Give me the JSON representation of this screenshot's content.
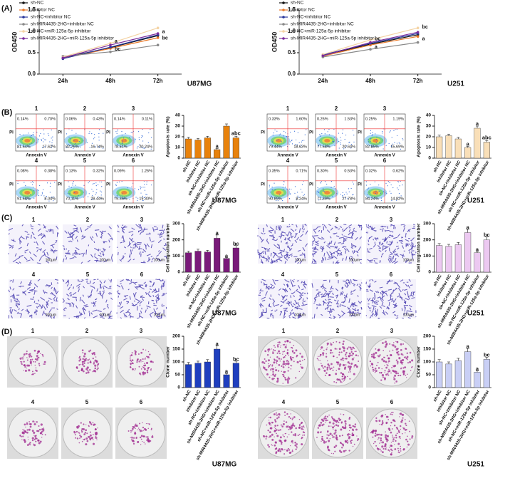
{
  "panels": [
    "(A)",
    "(B)",
    "(C)",
    "(D)"
  ],
  "flow": {
    "x_label": "Annexin V",
    "y_label": "PI",
    "groups": [
      {
        "plots": [
          {
            "label": "1",
            "quadrants": [
              "0.14%",
              "0.70%",
              "81.54%",
              "17.62%"
            ]
          },
          {
            "label": "2",
            "quadrants": [
              "0.06%",
              "0.43%",
              "82.76%",
              "16.74%"
            ]
          },
          {
            "label": "3",
            "quadrants": [
              "0.14%",
              "0.11%",
              "78.51%",
              "20.24%"
            ]
          },
          {
            "label": "4",
            "quadrants": [
              "0.08%",
              "0.38%",
              "91.58%",
              "8.04%"
            ]
          },
          {
            "label": "5",
            "quadrants": [
              "0.13%",
              "0.32%",
              "70.11%",
              "29.44%"
            ]
          },
          {
            "label": "6",
            "quadrants": [
              "0.09%",
              "1.26%",
              "79.36%",
              "19.30%"
            ]
          }
        ]
      },
      {
        "plots": [
          {
            "label": "1",
            "quadrants": [
              "0.33%",
              "1.60%",
              "79.44%",
              "18.63%"
            ]
          },
          {
            "label": "2",
            "quadrants": [
              "0.26%",
              "1.53%",
              "77.58%",
              "20.64%"
            ]
          },
          {
            "label": "3",
            "quadrants": [
              "0.25%",
              "1.19%",
              "82.85%",
              "15.69%"
            ]
          },
          {
            "label": "4",
            "quadrants": [
              "0.35%",
              "0.71%",
              "90.89%",
              "8.24%"
            ]
          },
          {
            "label": "5",
            "quadrants": [
              "0.30%",
              "0.53%",
              "71.39%",
              "27.78%"
            ]
          },
          {
            "label": "6",
            "quadrants": [
              "0.32%",
              "0.62%",
              "84.24%",
              "14.82%"
            ]
          }
        ]
      }
    ]
  },
  "migration_images": {
    "scale_bar": "100μm",
    "labels": [
      "1",
      "2",
      "3",
      "4",
      "5",
      "6"
    ]
  },
  "colony_images": {
    "labels": [
      "1",
      "2",
      "3",
      "4",
      "5",
      "6"
    ]
  },
  "chart_data": [
    {
      "type": "line",
      "title": "U87MG",
      "y_label": "OD450",
      "categories": [
        "24h",
        "48h",
        "72h"
      ],
      "ylim": [
        0,
        1.5
      ],
      "yticks": [
        {
          "value": 0,
          "label": "0.0"
        },
        0.5,
        {
          "value": 1,
          "label": "1.0"
        },
        1.5
      ],
      "series": [
        {
          "name": "sh-NC",
          "color": "#111111",
          "values": [
            0.38,
            0.62,
            0.9
          ]
        },
        {
          "name": "inhibitor NC",
          "color": "#e8792a",
          "values": [
            0.37,
            0.6,
            0.85
          ]
        },
        {
          "name": "sh-NC+inhibitor NC",
          "color": "#2b3a9e",
          "values": [
            0.36,
            0.63,
            0.92
          ]
        },
        {
          "name": "sh-MIR4435-2HG+inhibitor NC",
          "color": "#888888",
          "values": [
            0.42,
            0.52,
            0.68
          ]
        },
        {
          "name": "sh-NC+miR-125a-5p inhibitor",
          "color": "#f4d3a4",
          "values": [
            0.4,
            0.72,
            1.08
          ]
        },
        {
          "name": "sh-MIR4435-2HG+miR-125a-5p inhibitor",
          "color": "#7b2d9c",
          "values": [
            0.38,
            0.68,
            0.95
          ]
        }
      ],
      "annotations": [
        {
          "text": "a",
          "index": 1,
          "y": 0.76,
          "color": "#2b3a9e"
        },
        {
          "text": "bc",
          "index": 1,
          "y": 0.58,
          "color": "#e8792a"
        },
        {
          "text": "a",
          "index": 2,
          "y": 0.99,
          "color": "#2b3a9e"
        },
        {
          "text": "bc",
          "index": 2,
          "y": 0.84,
          "color": "#e8792a"
        }
      ]
    },
    {
      "type": "line",
      "title": "U251",
      "y_label": "OD450",
      "categories": [
        "24h",
        "48h",
        "72h"
      ],
      "ylim": [
        0,
        1.5
      ],
      "yticks": [
        {
          "value": 0,
          "label": "0.0"
        },
        0.5,
        {
          "value": 1,
          "label": "1.0"
        },
        1.5
      ],
      "series": [
        {
          "name": "sh-NC",
          "color": "#111111",
          "values": [
            0.44,
            0.7,
            0.92
          ]
        },
        {
          "name": "inhibitor NC",
          "color": "#e8792a",
          "values": [
            0.42,
            0.68,
            0.88
          ]
        },
        {
          "name": "sh-NC+inhibitor NC",
          "color": "#2b3a9e",
          "values": [
            0.45,
            0.72,
            0.95
          ]
        },
        {
          "name": "sh-MIR4435-2HG+inhibitor NC",
          "color": "#888888",
          "values": [
            0.4,
            0.58,
            0.74
          ]
        },
        {
          "name": "sh-NC+miR-125a-5p inhibitor",
          "color": "#f4d3a4",
          "values": [
            0.46,
            0.8,
            1.08
          ]
        },
        {
          "name": "sh-MIR4435-2HG+miR-125a-5p inhibitor",
          "color": "#7b2d9c",
          "values": [
            0.43,
            0.74,
            0.98
          ]
        }
      ],
      "annotations": [
        {
          "text": "bc",
          "index": 1,
          "y": 0.82,
          "color": "#e8792a"
        },
        {
          "text": "a",
          "index": 1,
          "y": 0.63,
          "color": "#2b3a9e"
        },
        {
          "text": "bc",
          "index": 2,
          "y": 1.1,
          "color": "#e8792a"
        },
        {
          "text": "a",
          "index": 2,
          "y": 0.82,
          "color": "#2b3a9e"
        }
      ]
    },
    {
      "type": "bar",
      "title": "U87MG",
      "y_label": "Apoptosis rate (%)",
      "color": "#e8820c",
      "categories": [
        "sh-NC",
        "inhibitor NC",
        "sh-NC+inhibitor NC",
        "sh-MIR4435-2HG+inhibitor NC",
        "sh-NC+miR-125a-5p inhibitor",
        "sh-MIR4435-2HG+miR-125a-5p inhibitor"
      ],
      "values": [
        18,
        17,
        19,
        8,
        30,
        19
      ],
      "errors": [
        1.5,
        1.5,
        1.5,
        1,
        2,
        1.5
      ],
      "ylim": [
        0,
        40
      ],
      "yticks": [
        0,
        10,
        20,
        30,
        40
      ],
      "annotations": [
        {
          "text": "a",
          "index": 3,
          "y": 11
        },
        {
          "text": "abc",
          "index": 5,
          "y": 23
        }
      ]
    },
    {
      "type": "bar",
      "title": "U251",
      "y_label": "Apoptosis rate (%)",
      "color": "#f9dfb8",
      "categories": [
        "sh-NC",
        "inhibitor NC",
        "sh-NC+inhibitor NC",
        "sh-MIR4435-2HG+inhibitor NC",
        "sh-NC+miR-125a-5p inhibitor",
        "sh-MIR4435-2HG+miR-125a-5p inhibitor"
      ],
      "values": [
        20,
        21,
        18,
        10,
        28,
        15
      ],
      "errors": [
        1.5,
        1.5,
        1.5,
        1,
        2,
        1.5
      ],
      "ylim": [
        0,
        40
      ],
      "yticks": [
        0,
        10,
        20,
        30,
        40
      ],
      "annotations": [
        {
          "text": "a",
          "index": 3,
          "y": 13
        },
        {
          "text": "a",
          "index": 4,
          "y": 32
        },
        {
          "text": "abc",
          "index": 5,
          "y": 19
        }
      ]
    },
    {
      "type": "bar",
      "title": "U87MG",
      "y_label": "Cell migration number",
      "color": "#7a1a7a",
      "categories": [
        "sh-NC",
        "inhibitor NC",
        "sh-NC+inhibitor NC",
        "sh-MIR4435-2HG+inhibitor NC",
        "sh-NC+miR-125a-5p inhibitor",
        "sh-MIR4435-2HG+miR-125a-5p inhibitor"
      ],
      "values": [
        120,
        130,
        125,
        210,
        85,
        150
      ],
      "errors": [
        10,
        12,
        10,
        20,
        6,
        14
      ],
      "ylim": [
        0,
        300
      ],
      "yticks": [
        0,
        100,
        200,
        300
      ],
      "annotations": [
        {
          "text": "a",
          "index": 3,
          "y": 240
        },
        {
          "text": "a",
          "index": 4,
          "y": 100
        },
        {
          "text": "bc",
          "index": 5,
          "y": 175
        }
      ]
    },
    {
      "type": "bar",
      "title": "U251",
      "y_label": "Cell migration number",
      "color": "#ecc9f1",
      "categories": [
        "sh-NC",
        "inhibitor NC",
        "sh-NC+inhibitor NC",
        "sh-MIR4435-2HG+inhibitor NC",
        "sh-NC+miR-125a-5p inhibitor",
        "sh-MIR4435-2HG+miR-125a-5p inhibitor"
      ],
      "values": [
        165,
        160,
        170,
        245,
        120,
        200
      ],
      "errors": [
        12,
        12,
        14,
        20,
        10,
        18
      ],
      "ylim": [
        0,
        300
      ],
      "yticks": [
        0,
        100,
        200,
        300
      ],
      "annotations": [
        {
          "text": "a",
          "index": 3,
          "y": 275
        },
        {
          "text": "a",
          "index": 4,
          "y": 140
        },
        {
          "text": "bc",
          "index": 5,
          "y": 230
        }
      ]
    },
    {
      "type": "bar",
      "title": "U87MG",
      "y_label": "Clone number",
      "color": "#1f3fbf",
      "categories": [
        "sh-NC",
        "inhibitor NC",
        "sh-NC+inhibitor NC",
        "sh-MIR4435-2HG+inhibitor NC",
        "sh-NC+miR-125a-5p inhibitor",
        "sh-MIR4435-2HG+miR-125a-5p inhibitor"
      ],
      "values": [
        90,
        95,
        100,
        150,
        50,
        95
      ],
      "errors": [
        8,
        8,
        9,
        12,
        5,
        8
      ],
      "ylim": [
        0,
        200
      ],
      "yticks": [
        0,
        50,
        100,
        150,
        200
      ],
      "annotations": [
        {
          "text": "a",
          "index": 3,
          "y": 170
        },
        {
          "text": "a",
          "index": 4,
          "y": 62
        },
        {
          "text": "bc",
          "index": 5,
          "y": 110
        }
      ]
    },
    {
      "type": "bar",
      "title": "U251",
      "y_label": "Clone number",
      "color": "#c9cff5",
      "categories": [
        "sh-NC",
        "inhibitor NC",
        "sh-NC+inhibitor NC",
        "sh-MIR4435-2HG+inhibitor NC",
        "sh-NC+miR-125a-5p inhibitor",
        "sh-MIR4435-2HG+miR-125a-5p inhibitor"
      ],
      "values": [
        100,
        92,
        105,
        140,
        60,
        110
      ],
      "errors": [
        9,
        8,
        9,
        12,
        5,
        8
      ],
      "ylim": [
        0,
        200
      ],
      "yticks": [
        0,
        50,
        100,
        150,
        200
      ],
      "annotations": [
        {
          "text": "a",
          "index": 3,
          "y": 160
        },
        {
          "text": "a",
          "index": 4,
          "y": 72
        },
        {
          "text": "bc",
          "index": 5,
          "y": 126
        }
      ]
    }
  ]
}
